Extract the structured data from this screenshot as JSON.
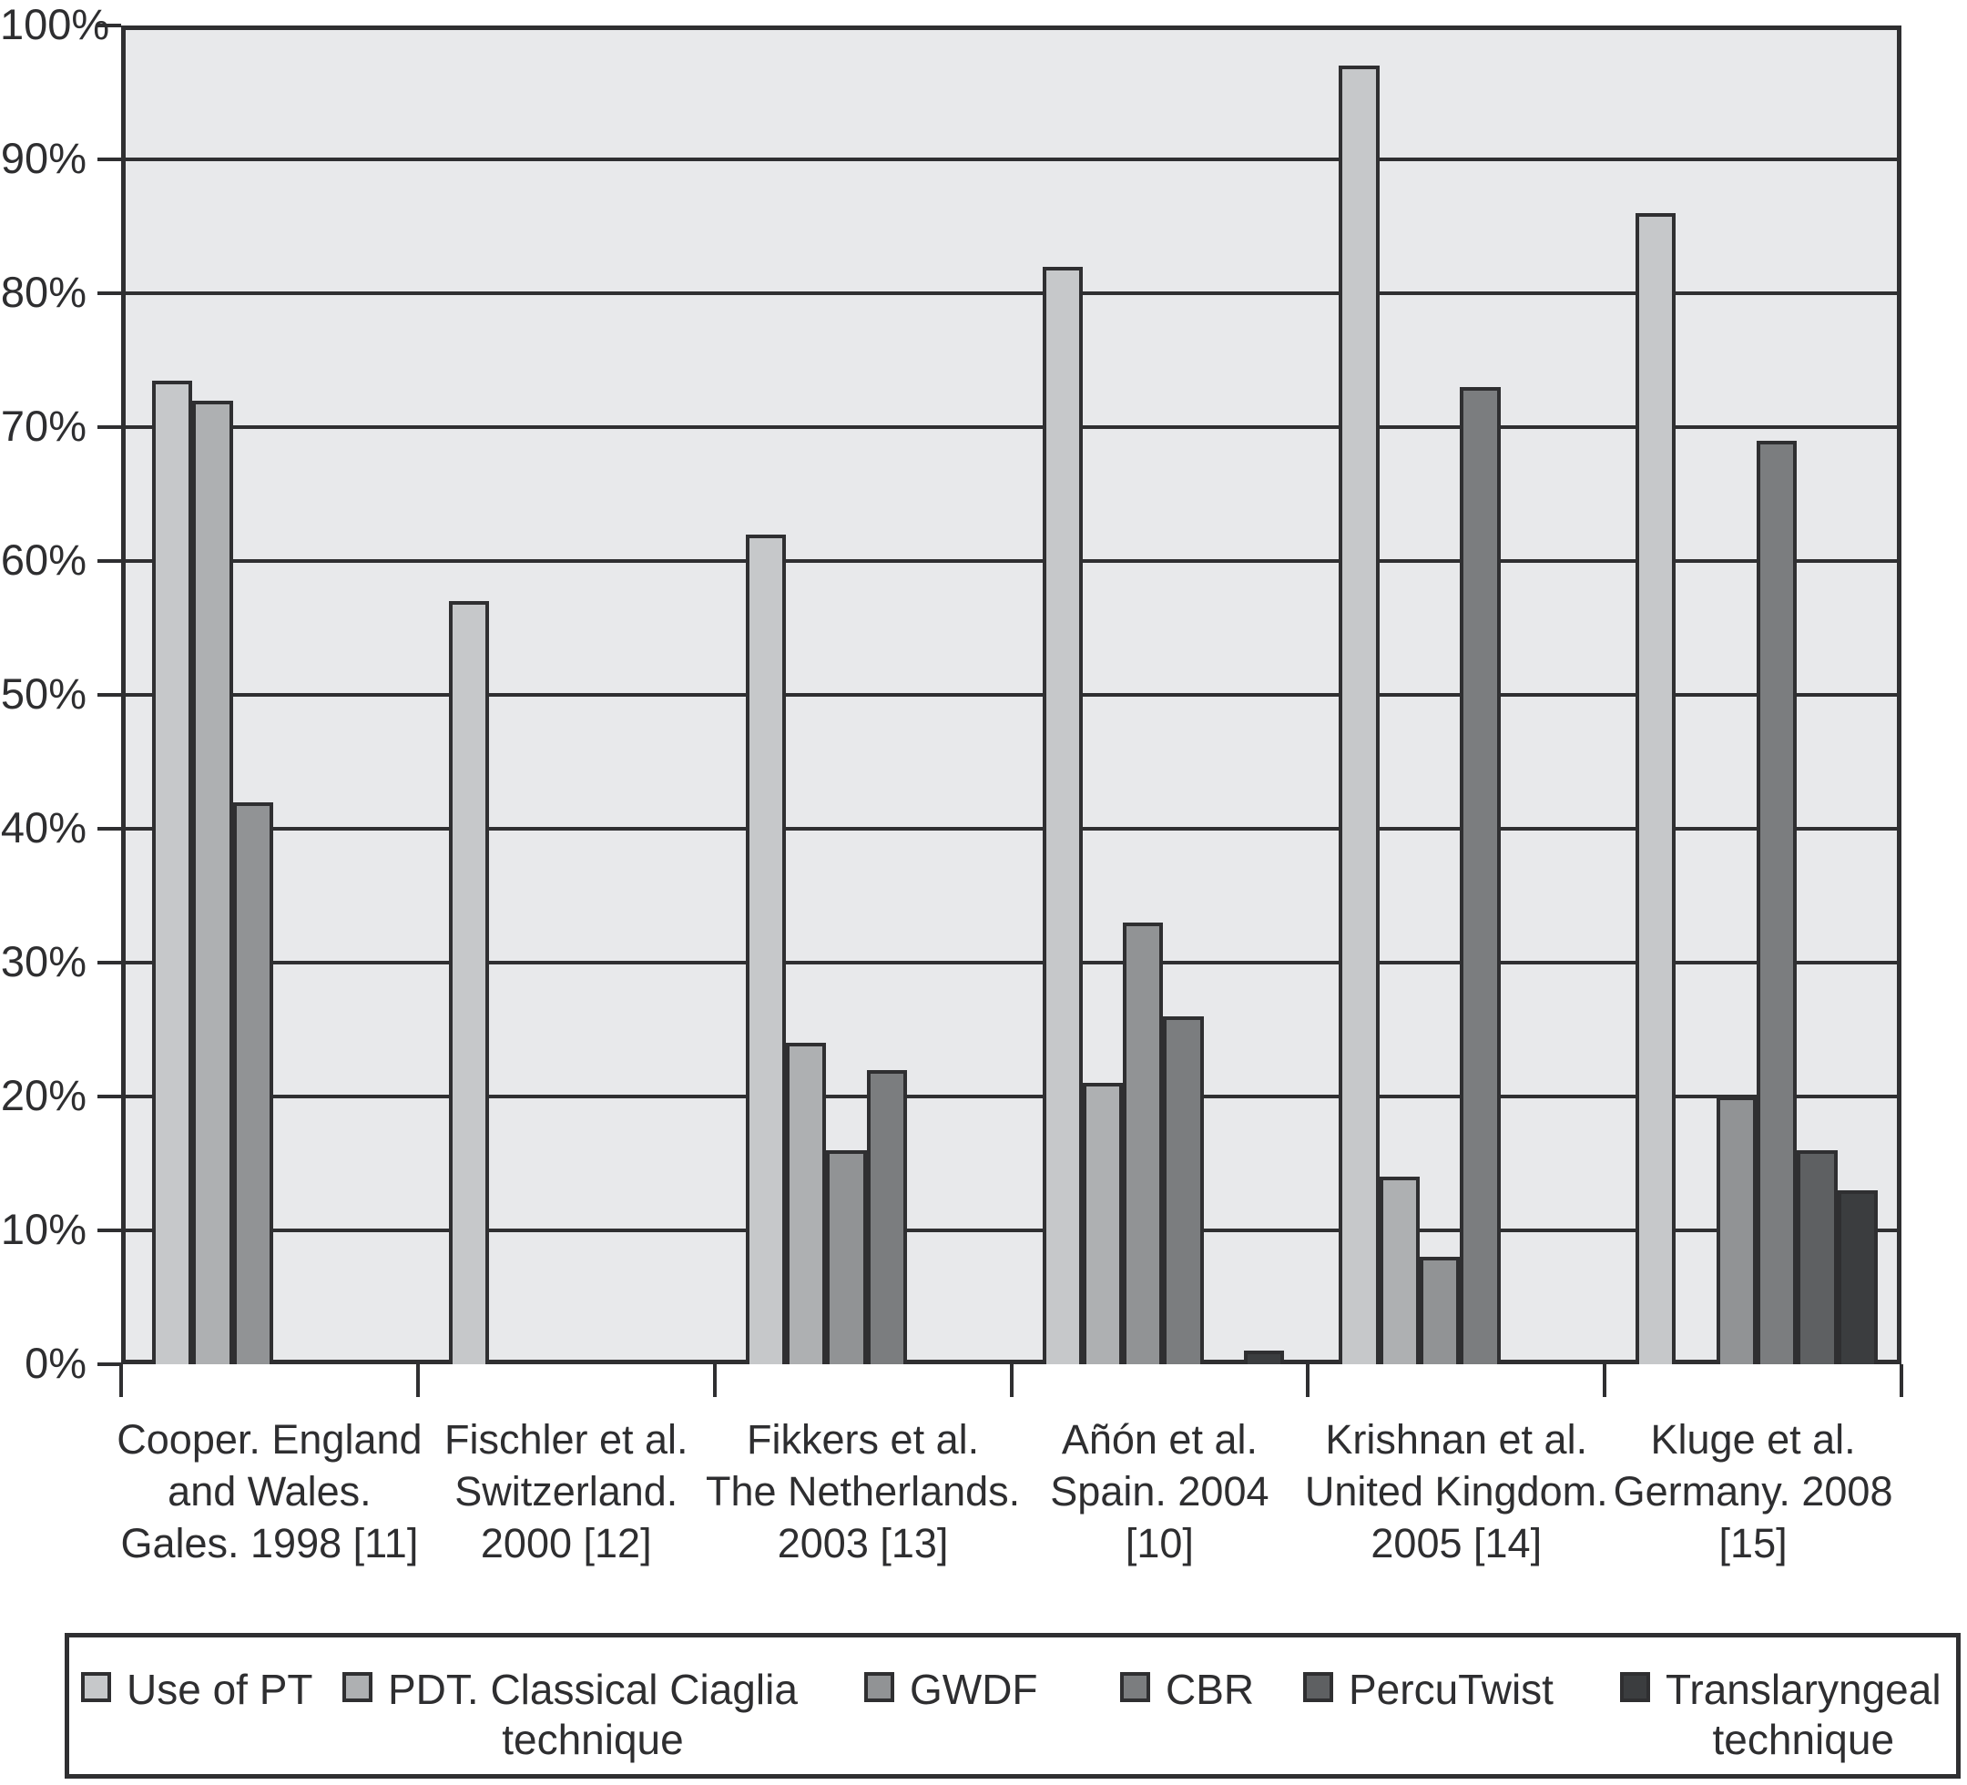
{
  "chart_data": {
    "type": "bar",
    "title": "",
    "xlabel": "",
    "ylabel": "",
    "ylim": [
      0,
      100
    ],
    "grid": "horizontal",
    "legend_position": "bottom",
    "y_tick_labels": [
      "0%",
      "10%",
      "20%",
      "30%",
      "40%",
      "50%",
      "60%",
      "70%",
      "80%",
      "90%",
      "100%"
    ],
    "categories": [
      "Cooper. England and Wales. Gales. 1998 [11]",
      "Fischler et al. Switzerland. 2000 [12]",
      "Fikkers et al. The Netherlands. 2003 [13]",
      "Añón et al. Spain. 2004 [10]",
      "Krishnan et al. United Kingdom. 2005 [14]",
      "Kluge et al. Germany. 2008 [15]"
    ],
    "category_label_lines": [
      [
        "Cooper. England",
        "and Wales.",
        "Gales. 1998 [11]"
      ],
      [
        "Fischler et al.",
        "Switzerland.",
        "2000 [12]"
      ],
      [
        "Fikkers et al.",
        "The Netherlands.",
        "2003 [13]"
      ],
      [
        "Añón et al.",
        "Spain. 2004",
        "[10]"
      ],
      [
        "Krishnan et al.",
        "United Kingdom.",
        "2005 [14]"
      ],
      [
        "Kluge et al.",
        "Germany. 2008",
        "[15]"
      ]
    ],
    "series": [
      {
        "name": "Use of PT",
        "legend_lines": [
          "Use of PT"
        ],
        "color": "#c6c8ca",
        "values": [
          73.5,
          57,
          62,
          82,
          97,
          86
        ]
      },
      {
        "name": "PDT. Classical Ciaglia technique",
        "legend_lines": [
          "PDT. Classical Ciaglia",
          "technique"
        ],
        "color": "#aeb0b2",
        "values": [
          72,
          null,
          24,
          21,
          14,
          null
        ]
      },
      {
        "name": "GWDF",
        "legend_lines": [
          "GWDF"
        ],
        "color": "#919395",
        "values": [
          42,
          null,
          16,
          33,
          8,
          20
        ]
      },
      {
        "name": "CBR",
        "legend_lines": [
          "CBR"
        ],
        "color": "#7b7d7f",
        "values": [
          null,
          null,
          22,
          26,
          73,
          69
        ]
      },
      {
        "name": "PercuTwist",
        "legend_lines": [
          "PercuTwist"
        ],
        "color": "#5e6062",
        "values": [
          null,
          null,
          null,
          null,
          null,
          16
        ]
      },
      {
        "name": "Translaryngeal technique",
        "legend_lines": [
          "Translaryngeal",
          "technique"
        ],
        "color": "#3b3d3f",
        "values": [
          null,
          null,
          null,
          1,
          null,
          13
        ]
      }
    ]
  },
  "colors": {
    "page_background": "#ffffff",
    "plot_background": "#e8e9eb",
    "axis_and_borders": "#2f2f31",
    "text": "#2e2e30"
  }
}
